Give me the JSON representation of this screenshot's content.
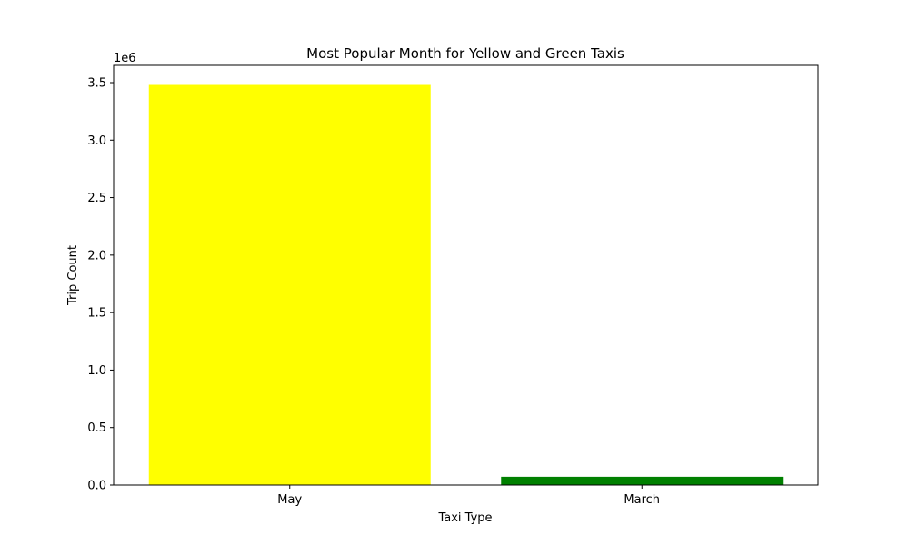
{
  "chart_data": {
    "type": "bar",
    "title": "Most Popular Month for Yellow and Green Taxis",
    "xlabel": "Taxi Type",
    "ylabel": "Trip Count",
    "categories": [
      "May",
      "March"
    ],
    "values": [
      3480000,
      72000
    ],
    "colors": [
      "#ffff00",
      "#008000"
    ],
    "ylim": [
      0,
      3650000
    ],
    "y_scale_label": "1e6",
    "y_ticks": [
      0,
      500000,
      1000000,
      1500000,
      2000000,
      2500000,
      3000000,
      3500000
    ],
    "y_tick_labels": [
      "0.0",
      "0.5",
      "1.0",
      "1.5",
      "2.0",
      "2.5",
      "3.0",
      "3.5"
    ],
    "grid": false,
    "legend": "none"
  }
}
